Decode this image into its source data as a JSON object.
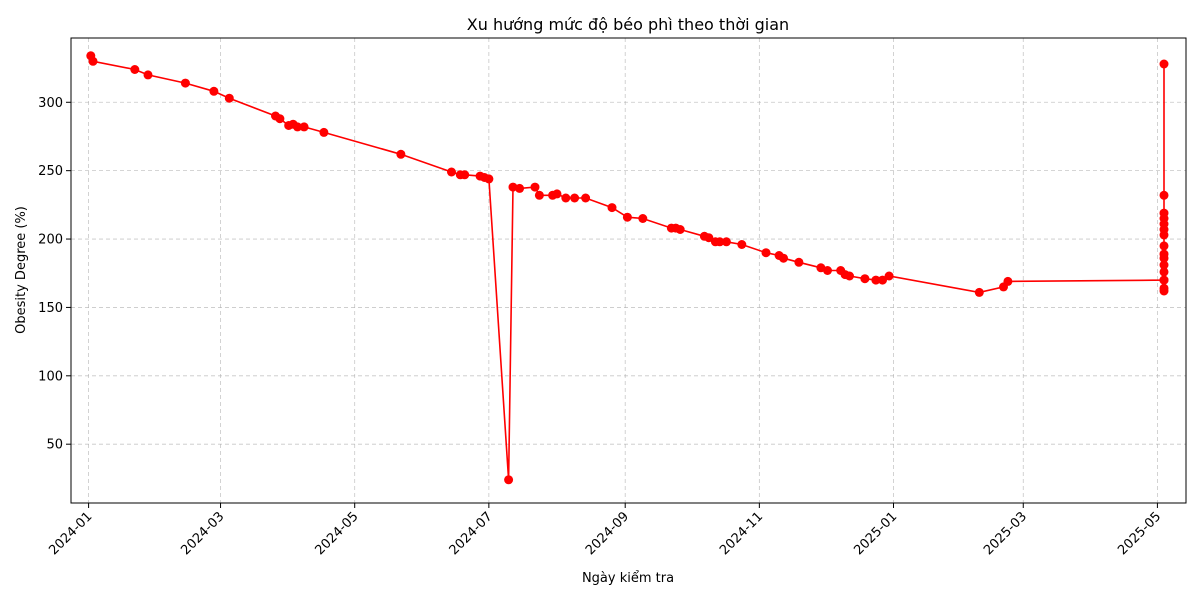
{
  "chart_data": {
    "type": "line",
    "title": "Xu hướng mức độ béo phì theo thời gian",
    "xlabel": "Ngày kiểm tra",
    "ylabel": "Obesity Degree (%)",
    "x_ticks": [
      "2024-01",
      "2024-03",
      "2024-05",
      "2024-07",
      "2024-09",
      "2024-11",
      "2025-01",
      "2025-03",
      "2025-05"
    ],
    "y_ticks": [
      50,
      100,
      150,
      200,
      250,
      300
    ],
    "xlim": [
      "2023-12-24",
      "2025-05-14"
    ],
    "ylim": [
      7,
      347
    ],
    "grid": true,
    "color": "#ff0000",
    "series": [
      {
        "x": [
          "2024-01-02",
          "2024-01-03",
          "2024-01-22",
          "2024-01-28",
          "2024-02-14",
          "2024-02-27",
          "2024-03-05",
          "2024-03-26",
          "2024-03-28",
          "2024-04-01",
          "2024-04-03",
          "2024-04-05",
          "2024-04-08",
          "2024-04-17",
          "2024-05-22",
          "2024-06-14",
          "2024-06-18",
          "2024-06-20",
          "2024-06-27",
          "2024-06-29",
          "2024-07-01",
          "2024-07-10",
          "2024-07-12",
          "2024-07-15",
          "2024-07-22",
          "2024-07-24",
          "2024-07-30",
          "2024-08-01",
          "2024-08-05",
          "2024-08-09",
          "2024-08-14",
          "2024-08-26",
          "2024-09-02",
          "2024-09-09",
          "2024-09-22",
          "2024-09-24",
          "2024-09-26",
          "2024-10-07",
          "2024-10-09",
          "2024-10-12",
          "2024-10-14",
          "2024-10-17",
          "2024-10-24",
          "2024-11-04",
          "2024-11-10",
          "2024-11-12",
          "2024-11-19",
          "2024-11-29",
          "2024-12-02",
          "2024-12-08",
          "2024-12-10",
          "2024-12-12",
          "2024-12-19",
          "2024-12-24",
          "2024-12-27",
          "2024-12-30",
          "2025-02-09",
          "2025-02-20",
          "2025-02-22",
          "2025-05-04",
          "2025-05-04",
          "2025-05-04",
          "2025-05-04",
          "2025-05-04",
          "2025-05-04",
          "2025-05-04",
          "2025-05-04",
          "2025-05-04",
          "2025-05-04",
          "2025-05-04",
          "2025-05-04",
          "2025-05-04",
          "2025-05-04",
          "2025-05-04",
          "2025-05-04"
        ],
        "y": [
          334,
          330,
          324,
          320,
          314,
          308,
          303,
          290,
          288,
          283,
          284,
          282,
          282,
          278,
          262,
          249,
          247,
          247,
          246,
          245,
          244,
          24,
          238,
          237,
          238,
          232,
          232,
          233,
          230,
          230,
          230,
          223,
          216,
          215,
          208,
          208,
          207,
          202,
          201,
          198,
          198,
          198,
          196,
          190,
          188,
          186,
          183,
          179,
          177,
          177,
          174,
          173,
          171,
          170,
          170,
          173,
          161,
          165,
          169,
          170,
          328,
          232,
          219,
          215,
          211,
          207,
          203,
          195,
          189,
          186,
          181,
          176,
          170,
          164,
          162
        ]
      }
    ]
  }
}
